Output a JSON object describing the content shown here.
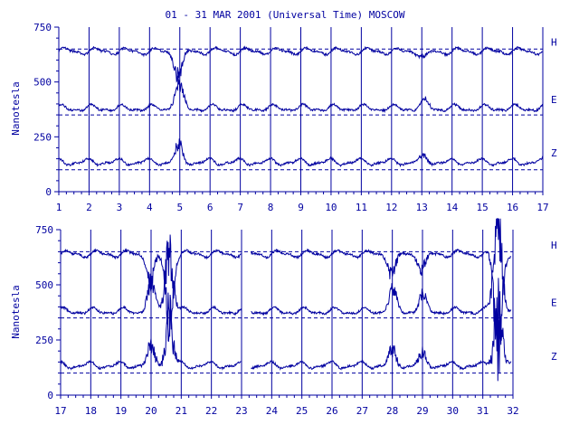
{
  "chart_data": {
    "type": "line",
    "title": "01 - 31 MAR 2001 (Universal Time) MOSCOW",
    "ylabel": "Nanotesla",
    "ylim": [
      0,
      750
    ],
    "yticks": [
      0,
      250,
      500,
      750
    ],
    "components": [
      {
        "name": "H",
        "baseline": 650,
        "level": 640
      },
      {
        "name": "E",
        "baseline": 350,
        "level": 380
      },
      {
        "name": "Z",
        "baseline": 100,
        "level": 135
      }
    ],
    "panels": [
      {
        "xlim": [
          1,
          17
        ],
        "xticks": [
          "1",
          "2",
          "3",
          "4",
          "5",
          "6",
          "7",
          "8",
          "9",
          "10",
          "11",
          "12",
          "13",
          "14",
          "15",
          "16",
          "17"
        ],
        "disturbances": [
          {
            "day": 5.0,
            "amp": 70
          },
          {
            "day": 4.9,
            "amp": 40
          },
          {
            "day": 13.1,
            "amp": 30
          }
        ],
        "gaps": []
      },
      {
        "xlim": [
          17,
          32
        ],
        "xticks": [
          "17",
          "18",
          "19",
          "20",
          "21",
          "22",
          "23",
          "24",
          "25",
          "26",
          "27",
          "28",
          "29",
          "30",
          "31",
          "32"
        ],
        "disturbances": [
          {
            "day": 20.6,
            "amp": 280
          },
          {
            "day": 20.0,
            "amp": 120
          },
          {
            "day": 28.0,
            "amp": 90
          },
          {
            "day": 29.0,
            "amp": 70
          },
          {
            "day": 31.5,
            "amp": 420
          }
        ],
        "gaps": [
          [
            23.0,
            23.3
          ],
          [
            31.95,
            32
          ]
        ]
      }
    ]
  }
}
